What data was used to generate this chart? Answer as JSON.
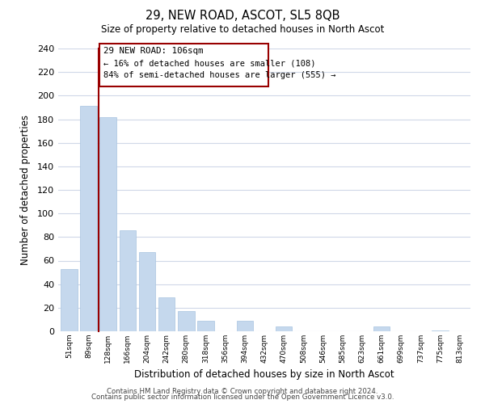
{
  "title1": "29, NEW ROAD, ASCOT, SL5 8QB",
  "title2": "Size of property relative to detached houses in North Ascot",
  "xlabel": "Distribution of detached houses by size in North Ascot",
  "ylabel": "Number of detached properties",
  "bar_color": "#c5d8ed",
  "bar_edge_color": "#a8c4e0",
  "marker_color": "#990000",
  "categories": [
    "51sqm",
    "89sqm",
    "128sqm",
    "166sqm",
    "204sqm",
    "242sqm",
    "280sqm",
    "318sqm",
    "356sqm",
    "394sqm",
    "432sqm",
    "470sqm",
    "508sqm",
    "546sqm",
    "585sqm",
    "623sqm",
    "661sqm",
    "699sqm",
    "737sqm",
    "775sqm",
    "813sqm"
  ],
  "values": [
    53,
    191,
    182,
    86,
    67,
    29,
    17,
    9,
    0,
    9,
    0,
    4,
    0,
    0,
    0,
    0,
    4,
    0,
    0,
    1,
    0
  ],
  "marker_label": "29 NEW ROAD: 106sqm",
  "annotation_line1": "← 16% of detached houses are smaller (108)",
  "annotation_line2": "84% of semi-detached houses are larger (555) →",
  "ylim": [
    0,
    240
  ],
  "yticks": [
    0,
    20,
    40,
    60,
    80,
    100,
    120,
    140,
    160,
    180,
    200,
    220,
    240
  ],
  "footer1": "Contains HM Land Registry data © Crown copyright and database right 2024.",
  "footer2": "Contains public sector information licensed under the Open Government Licence v3.0.",
  "background_color": "#ffffff",
  "grid_color": "#d0d8e8"
}
